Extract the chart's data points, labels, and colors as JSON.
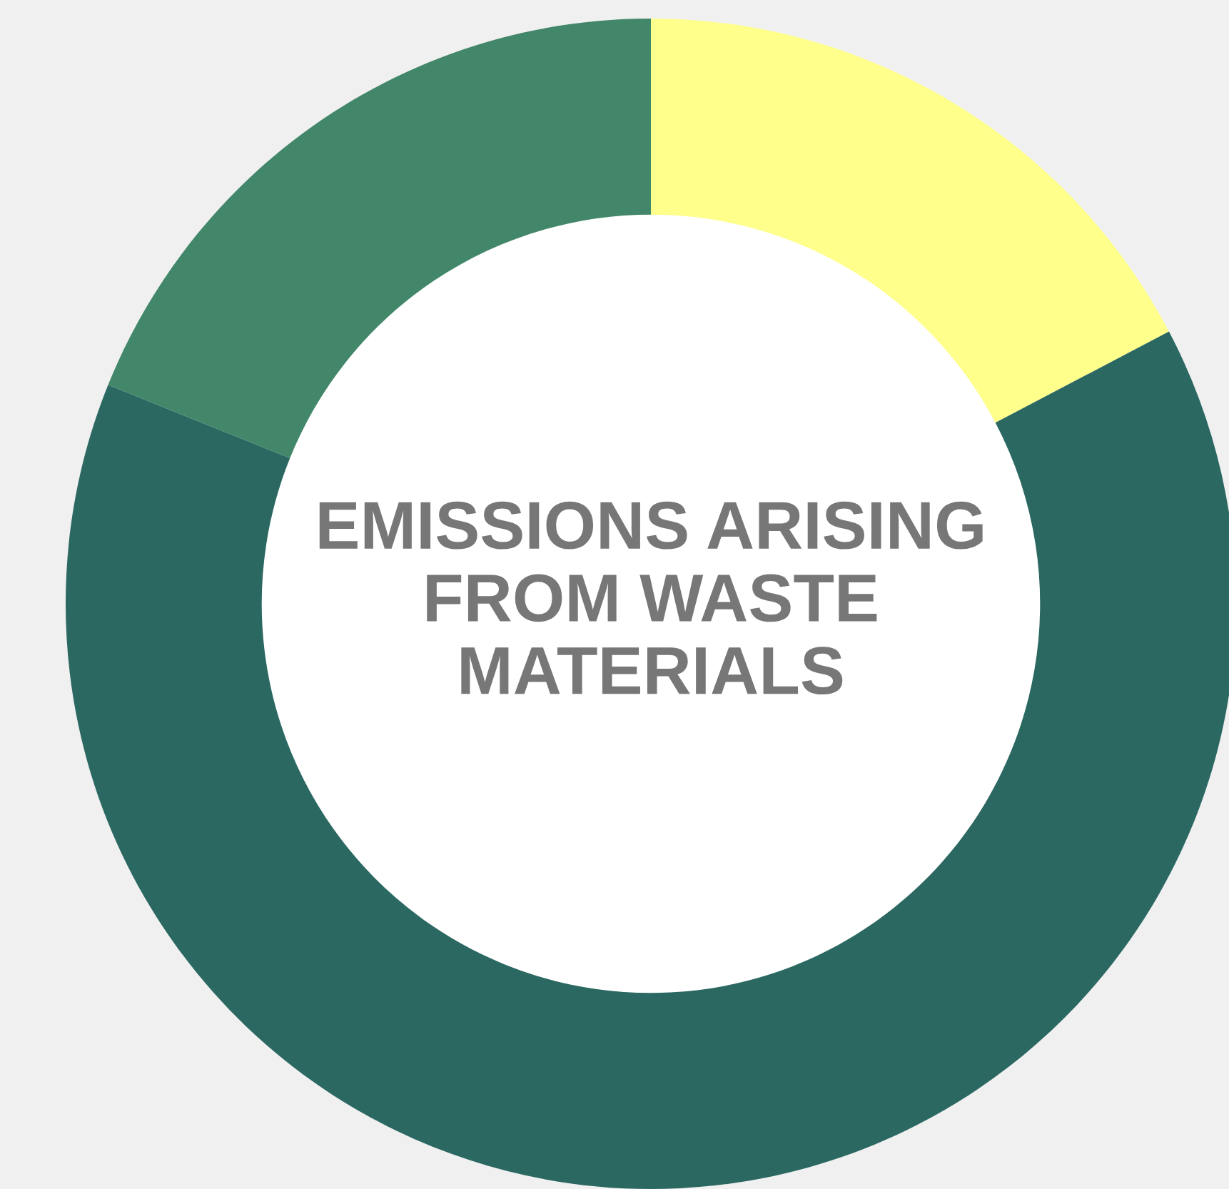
{
  "chart_data": {
    "type": "donut",
    "title": "EMISSIONS ARISING FROM WASTE MATERIALS",
    "categories": [
      null,
      null,
      null
    ],
    "values": [
      17.3,
      63.8,
      18.9
    ],
    "colors": [
      "#ffff8c",
      "#2b6862",
      "#42876a"
    ],
    "legend": false
  }
}
